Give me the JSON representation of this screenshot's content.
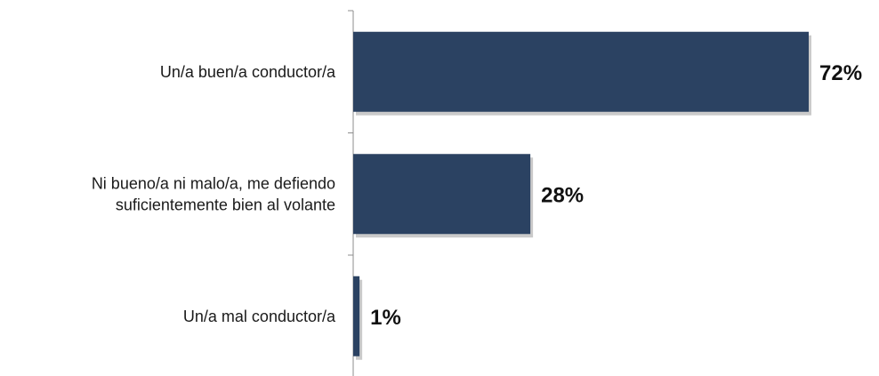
{
  "chart_data": {
    "type": "bar",
    "orientation": "horizontal",
    "categories": [
      [
        "Un/a buen/a conductor/a"
      ],
      [
        "Ni bueno/a ni malo/a, me defiendo",
        "suficientemente bien al volante"
      ],
      [
        "Un/a mal conductor/a"
      ]
    ],
    "values": [
      72,
      28,
      1
    ],
    "value_labels": [
      "72%",
      "28%",
      "1%"
    ],
    "xlim": [
      0,
      100
    ],
    "grid": false,
    "legend": "none",
    "colors": {
      "bar": "#2b4262",
      "bar_shadow": "#b3b3b3",
      "axis": "#8c8c8c"
    }
  }
}
